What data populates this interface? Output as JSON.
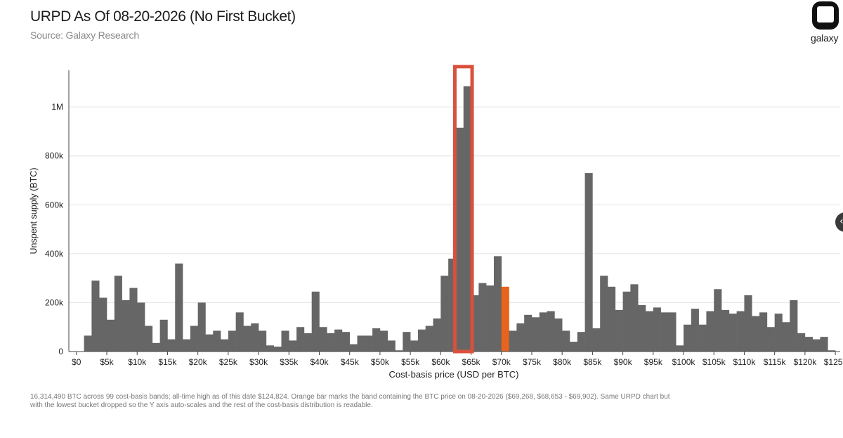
{
  "header": {
    "title": "URPD As Of 08-20-2026 (No First Bucket)",
    "subtitle": "Source: Galaxy Research",
    "brand": "galaxy",
    "brand_icon": "galaxy-logo-icon"
  },
  "footnote": "16,314,490 BTC across 99 cost-basis bands; all-time high as of this date $124,824. Orange bar marks the band containing the BTC price on 08-20-2026 ($69,268, $68,653 - $69,902). Same URPD chart but with the lowest bucket dropped so the Y axis auto-scales and the rest of the cost-basis distribution is readable.",
  "nav": {
    "icon": "chevron-left-icon"
  },
  "chart_data": {
    "type": "bar",
    "title": "URPD As Of 08-20-2026 (No First Bucket)",
    "xlabel": "Cost-basis price (USD per BTC)",
    "ylabel": "Unspent supply (BTC)",
    "xlim": [
      -1250,
      125800
    ],
    "ylim": [
      0,
      1150000
    ],
    "grid": true,
    "bin_width": 1250,
    "highlight_index": 55,
    "colors": {
      "bar": "#666666",
      "highlight": "#e8641d",
      "box": "#d9503c",
      "grid": "#e4e4e4",
      "axis": "#444444"
    },
    "x_ticks": [
      {
        "value": 0,
        "label": "$0"
      },
      {
        "value": 5000,
        "label": "$5k"
      },
      {
        "value": 10000,
        "label": "$10k"
      },
      {
        "value": 15000,
        "label": "$15k"
      },
      {
        "value": 20000,
        "label": "$20k"
      },
      {
        "value": 25000,
        "label": "$25k"
      },
      {
        "value": 30000,
        "label": "$30k"
      },
      {
        "value": 35000,
        "label": "$35k"
      },
      {
        "value": 40000,
        "label": "$40k"
      },
      {
        "value": 45000,
        "label": "$45k"
      },
      {
        "value": 50000,
        "label": "$50k"
      },
      {
        "value": 55000,
        "label": "$55k"
      },
      {
        "value": 60000,
        "label": "$60k"
      },
      {
        "value": 65000,
        "label": "$65k"
      },
      {
        "value": 70000,
        "label": "$70k"
      },
      {
        "value": 75000,
        "label": "$75k"
      },
      {
        "value": 80000,
        "label": "$80k"
      },
      {
        "value": 85000,
        "label": "$85k"
      },
      {
        "value": 90000,
        "label": "$90k"
      },
      {
        "value": 95000,
        "label": "$95k"
      },
      {
        "value": 100000,
        "label": "$100k"
      },
      {
        "value": 105000,
        "label": "$105k"
      },
      {
        "value": 110000,
        "label": "$110k"
      },
      {
        "value": 115000,
        "label": "$115k"
      },
      {
        "value": 120000,
        "label": "$120k"
      },
      {
        "value": 125000,
        "label": "$125k"
      }
    ],
    "y_ticks": [
      {
        "value": 0,
        "label": "0"
      },
      {
        "value": 200000,
        "label": "200k"
      },
      {
        "value": 400000,
        "label": "400k"
      },
      {
        "value": 600000,
        "label": "600k"
      },
      {
        "value": 800000,
        "label": "800k"
      },
      {
        "value": 1000000,
        "label": "1M"
      }
    ],
    "highlight_box": {
      "x_from": 62500,
      "x_to": 65000,
      "y_from": 0,
      "y_to": 1165000
    },
    "x": [
      1250,
      2500,
      3750,
      5000,
      6250,
      7500,
      8750,
      10000,
      11250,
      12500,
      13750,
      15000,
      16250,
      17500,
      18750,
      20000,
      21250,
      22500,
      23750,
      25000,
      26250,
      27500,
      28750,
      30000,
      31250,
      32500,
      33750,
      35000,
      36250,
      37500,
      38750,
      40000,
      41250,
      42500,
      43750,
      45000,
      46250,
      47500,
      48750,
      50000,
      51250,
      52500,
      53750,
      55000,
      56250,
      57500,
      58750,
      60000,
      61250,
      62500,
      63750,
      65000,
      66250,
      67500,
      68750,
      70000,
      71250,
      72500,
      73750,
      75000,
      76250,
      77500,
      78750,
      80000,
      81250,
      82500,
      83750,
      85000,
      86250,
      87500,
      88750,
      90000,
      91250,
      92500,
      93750,
      95000,
      96250,
      97500,
      98750,
      100000,
      101250,
      102500,
      103750,
      105000,
      106250,
      107500,
      108750,
      110000,
      111250,
      112500,
      113750,
      115000,
      116250,
      117500,
      118750,
      120000,
      121250,
      122500,
      123750
    ],
    "values": [
      65000,
      290000,
      220000,
      130000,
      310000,
      210000,
      260000,
      200000,
      105000,
      35000,
      130000,
      50000,
      360000,
      50000,
      105000,
      200000,
      70000,
      85000,
      50000,
      85000,
      160000,
      105000,
      115000,
      85000,
      25000,
      20000,
      85000,
      45000,
      100000,
      75000,
      245000,
      100000,
      75000,
      90000,
      80000,
      30000,
      65000,
      65000,
      95000,
      85000,
      45000,
      5000,
      80000,
      45000,
      90000,
      105000,
      135000,
      310000,
      380000,
      915000,
      1085000,
      230000,
      280000,
      270000,
      390000,
      265000,
      85000,
      115000,
      150000,
      140000,
      160000,
      165000,
      135000,
      85000,
      40000,
      80000,
      730000,
      95000,
      310000,
      265000,
      170000,
      245000,
      275000,
      190000,
      165000,
      180000,
      160000,
      160000,
      25000,
      110000,
      175000,
      110000,
      165000,
      255000,
      170000,
      155000,
      165000,
      230000,
      145000,
      160000,
      100000,
      155000,
      120000,
      210000,
      75000,
      60000,
      50000,
      60000,
      5000
    ]
  }
}
